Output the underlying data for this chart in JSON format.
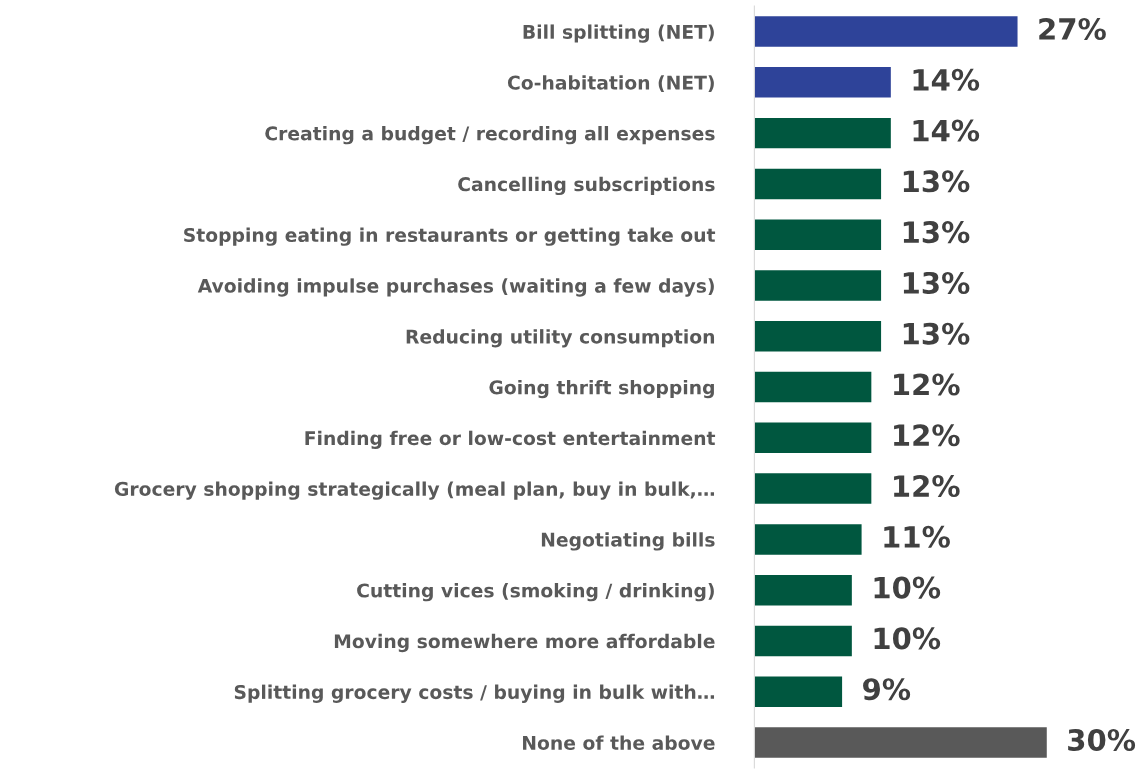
{
  "chart_data": {
    "type": "bar",
    "orientation": "horizontal",
    "categories": [
      "Bill splitting (NET)",
      "Co-habitation (NET)",
      "Creating a budget / recording all expenses",
      "Cancelling subscriptions",
      "Stopping eating in restaurants or getting take out",
      "Avoiding impulse purchases (waiting a few days)",
      "Reducing utility consumption",
      "Going thrift shopping",
      "Finding free or low-cost entertainment",
      "Grocery shopping strategically (meal plan, buy in bulk,…",
      "Negotiating bills",
      "Cutting vices (smoking / drinking)",
      "Moving somewhere more affordable",
      "Splitting grocery costs / buying in bulk with…",
      "None of the above"
    ],
    "values": [
      27,
      14,
      14,
      13,
      13,
      13,
      13,
      12,
      12,
      12,
      11,
      10,
      10,
      9,
      30
    ],
    "colors": [
      "#2e4399",
      "#2e4399",
      "#00573f",
      "#00573f",
      "#00573f",
      "#00573f",
      "#00573f",
      "#00573f",
      "#00573f",
      "#00573f",
      "#00573f",
      "#00573f",
      "#00573f",
      "#00573f",
      "#595959"
    ],
    "value_labels": [
      "27%",
      "14%",
      "14%",
      "13%",
      "13%",
      "13%",
      "13%",
      "12%",
      "12%",
      "12%",
      "11%",
      "10%",
      "10%",
      "9%",
      "30%"
    ],
    "grid": false,
    "legend": false
  }
}
